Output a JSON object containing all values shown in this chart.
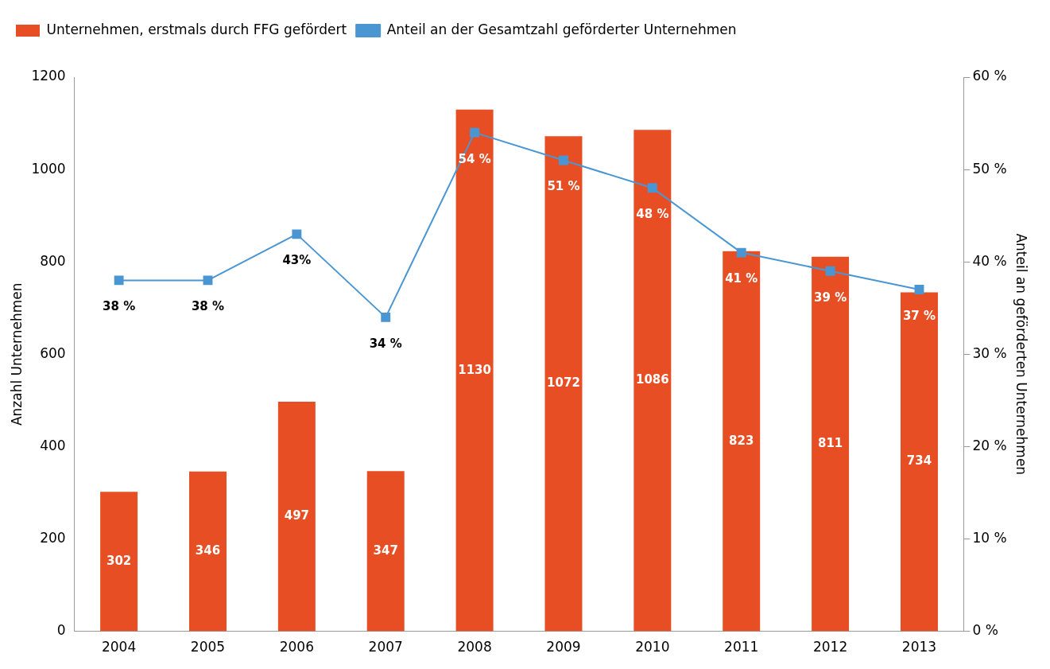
{
  "chart_data": {
    "type": "bar",
    "categories": [
      "2004",
      "2005",
      "2006",
      "2007",
      "2008",
      "2009",
      "2010",
      "2011",
      "2012",
      "2013"
    ],
    "ylabel": "Anzahl Unternehmen",
    "y2label": "Anteil an geförderten Unternehmen",
    "ylim": [
      0,
      1200
    ],
    "yticks": [
      0,
      200,
      400,
      600,
      800,
      1000,
      1200
    ],
    "y2lim": [
      0,
      60
    ],
    "y2ticks": [
      {
        "value": 0,
        "label": "0 %"
      },
      {
        "value": 10,
        "label": "10 %"
      },
      {
        "value": 20,
        "label": "20 %"
      },
      {
        "value": 30,
        "label": "30 %"
      },
      {
        "value": 40,
        "label": "40 %"
      },
      {
        "value": 50,
        "label": "50 %"
      },
      {
        "value": 60,
        "label": "60 %"
      }
    ],
    "series": [
      {
        "name": "Unternehmen, erstmals durch FFG gefördert",
        "color": "#e84e24",
        "values": [
          302,
          346,
          497,
          347,
          1130,
          1072,
          1086,
          823,
          811,
          734
        ],
        "data_labels": true
      },
      {
        "name": "Anteil an der Gesamtzahl geförderter Unternehmen",
        "type": "line",
        "axis": "y2",
        "color": "#4a96d2",
        "marker": "square",
        "values": [
          38,
          38,
          43,
          34,
          54,
          51,
          48,
          41,
          39,
          37
        ],
        "value_labels": [
          "38 %",
          "38 %",
          "43%",
          "34 %",
          "54 %",
          "51 %",
          "48 %",
          "41 %",
          "39 %",
          "37 %"
        ]
      }
    ],
    "grid": false,
    "legend": "top left"
  }
}
